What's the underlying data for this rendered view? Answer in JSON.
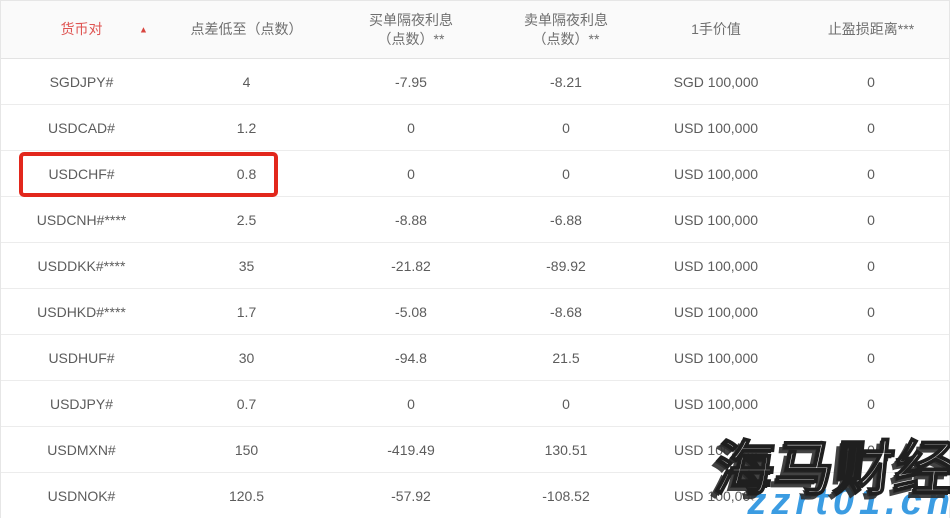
{
  "table": {
    "columns": [
      {
        "label": "货币对",
        "sorted": "asc"
      },
      {
        "label": "点差低至（点数）"
      },
      {
        "label": "买单隔夜利息",
        "label2": "（点数）**"
      },
      {
        "label": "卖单隔夜利息",
        "label2": "（点数）**"
      },
      {
        "label": "1手价值"
      },
      {
        "label": "止盈损距离***"
      }
    ],
    "sort_icon": "▲",
    "rows": [
      [
        "SGDJPY#",
        "4",
        "-7.95",
        "-8.21",
        "SGD 100,000",
        "0"
      ],
      [
        "USDCAD#",
        "1.2",
        "0",
        "0",
        "USD 100,000",
        "0"
      ],
      [
        "USDCHF#",
        "0.8",
        "0",
        "0",
        "USD 100,000",
        "0"
      ],
      [
        "USDCNH#****",
        "2.5",
        "-8.88",
        "-6.88",
        "USD 100,000",
        "0"
      ],
      [
        "USDDKK#****",
        "35",
        "-21.82",
        "-89.92",
        "USD 100,000",
        "0"
      ],
      [
        "USDHKD#****",
        "1.7",
        "-5.08",
        "-8.68",
        "USD 100,000",
        "0"
      ],
      [
        "USDHUF#",
        "30",
        "-94.8",
        "21.5",
        "USD 100,000",
        "0"
      ],
      [
        "USDJPY#",
        "0.7",
        "0",
        "0",
        "USD 100,000",
        "0"
      ],
      [
        "USDMXN#",
        "150",
        "-419.49",
        "130.51",
        "USD 100,000",
        "0"
      ],
      [
        "USDNOK#",
        "120.5",
        "-57.92",
        "-108.52",
        "USD 100,000",
        "0"
      ]
    ],
    "highlighted_pair": "USDCHF#"
  },
  "watermark": {
    "brand": "海马财经",
    "site": "zzrt01.cn"
  },
  "colors": {
    "header_accent_red": "#df5452",
    "highlight_box_red": "#e2271c",
    "watermark_blue": "#3b9ce2",
    "header_bg": "#fafafa",
    "row_border": "#ececec",
    "text_gray": "#5c5c5c"
  }
}
